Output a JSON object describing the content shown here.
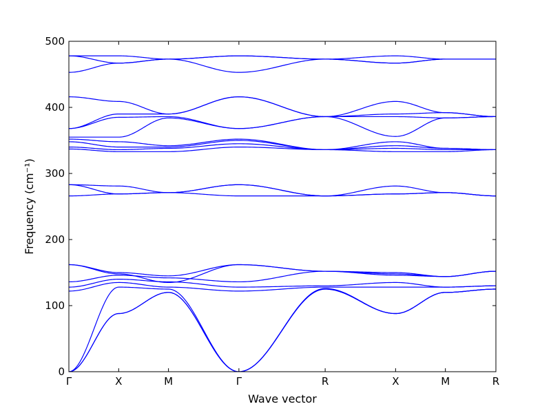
{
  "chart_data": {
    "type": "line",
    "xlabel": "Wave vector",
    "ylabel": "Frequency (cm⁻¹)",
    "ylim": [
      0,
      500
    ],
    "yticks": [
      0,
      100,
      200,
      300,
      400,
      500
    ],
    "kpoints": [
      {
        "label": "Γ",
        "x": 0.0
      },
      {
        "label": "X",
        "x": 0.5
      },
      {
        "label": "M",
        "x": 1.0
      },
      {
        "label": "Γ",
        "x": 1.707
      },
      {
        "label": "R",
        "x": 2.573
      },
      {
        "label": "X",
        "x": 3.28
      },
      {
        "label": "M",
        "x": 3.78
      },
      {
        "label": "R",
        "x": 4.287
      }
    ],
    "line_color": "#0000ff",
    "grid": false,
    "series": [
      {
        "x": [
          0,
          0.5,
          1,
          1.707,
          2.573,
          3.28,
          3.78,
          4.287
        ],
        "y": [
          0,
          88,
          120,
          0,
          125,
          88,
          120,
          125
        ]
      },
      {
        "x": [
          0,
          0.5,
          1,
          1.707,
          2.573,
          3.28,
          3.78,
          4.287
        ],
        "y": [
          0,
          88,
          120,
          0,
          125,
          88,
          120,
          125
        ]
      },
      {
        "x": [
          0,
          0.5,
          1,
          1.707,
          2.573,
          3.28,
          3.78,
          4.287
        ],
        "y": [
          0,
          128,
          125,
          0,
          126,
          88,
          120,
          125
        ]
      },
      {
        "x": [
          0,
          0.5,
          1,
          1.707,
          2.573,
          3.28,
          3.78,
          4.287
        ],
        "y": [
          122,
          135,
          128,
          122,
          128,
          128,
          128,
          130
        ]
      },
      {
        "x": [
          0,
          0.5,
          1,
          1.707,
          2.573,
          3.28,
          3.78,
          4.287
        ],
        "y": [
          128,
          140,
          136,
          128,
          130,
          135,
          128,
          130
        ]
      },
      {
        "x": [
          0,
          0.5,
          1,
          1.707,
          2.573,
          3.28,
          3.78,
          4.287
        ],
        "y": [
          136,
          146,
          142,
          136,
          152,
          146,
          144,
          152
        ]
      },
      {
        "x": [
          0,
          0.5,
          1,
          1.707,
          2.573,
          3.28,
          3.78,
          4.287
        ],
        "y": [
          162,
          148,
          135,
          162,
          152,
          148,
          144,
          152
        ]
      },
      {
        "x": [
          0,
          0.5,
          1,
          1.707,
          2.573,
          3.28,
          3.78,
          4.287
        ],
        "y": [
          162,
          150,
          145,
          162,
          152,
          150,
          144,
          152
        ]
      },
      {
        "x": [
          0,
          0.5,
          1,
          1.707,
          2.573,
          3.28,
          3.78,
          4.287
        ],
        "y": [
          266,
          269,
          271,
          266,
          266,
          269,
          271,
          266
        ]
      },
      {
        "x": [
          0,
          0.5,
          1,
          1.707,
          2.573,
          3.28,
          3.78,
          4.287
        ],
        "y": [
          283,
          269,
          271,
          283,
          266,
          269,
          271,
          266
        ]
      },
      {
        "x": [
          0,
          0.5,
          1,
          1.707,
          2.573,
          3.28,
          3.78,
          4.287
        ],
        "y": [
          283,
          281,
          271,
          283,
          266,
          281,
          271,
          266
        ]
      },
      {
        "x": [
          0,
          0.5,
          1,
          1.707,
          2.573,
          3.28,
          3.78,
          4.287
        ],
        "y": [
          337,
          333,
          333,
          340,
          336,
          333,
          333,
          336
        ]
      },
      {
        "x": [
          0,
          0.5,
          1,
          1.707,
          2.573,
          3.28,
          3.78,
          4.287
        ],
        "y": [
          340,
          336,
          338,
          345,
          336,
          338,
          336,
          336
        ]
      },
      {
        "x": [
          0,
          0.5,
          1,
          1.707,
          2.573,
          3.28,
          3.78,
          4.287
        ],
        "y": [
          348,
          340,
          340,
          350,
          336,
          342,
          338,
          336
        ]
      },
      {
        "x": [
          0,
          0.5,
          1,
          1.707,
          2.573,
          3.28,
          3.78,
          4.287
        ],
        "y": [
          352,
          348,
          342,
          352,
          336,
          348,
          338,
          336
        ]
      },
      {
        "x": [
          0,
          0.5,
          1,
          1.707,
          2.573,
          3.28,
          3.78,
          4.287
        ],
        "y": [
          355,
          355,
          384,
          368,
          386,
          356,
          384,
          386
        ]
      },
      {
        "x": [
          0,
          0.5,
          1,
          1.707,
          2.573,
          3.28,
          3.78,
          4.287
        ],
        "y": [
          368,
          385,
          386,
          368,
          386,
          386,
          384,
          386
        ]
      },
      {
        "x": [
          0,
          0.5,
          1,
          1.707,
          2.573,
          3.28,
          3.78,
          4.287
        ],
        "y": [
          368,
          390,
          390,
          416,
          386,
          390,
          392,
          386
        ]
      },
      {
        "x": [
          0,
          0.5,
          1,
          1.707,
          2.573,
          3.28,
          3.78,
          4.287
        ],
        "y": [
          416,
          409,
          390,
          416,
          386,
          409,
          392,
          386
        ]
      },
      {
        "x": [
          0,
          0.5,
          1,
          1.707,
          2.573,
          3.28,
          3.78,
          4.287
        ],
        "y": [
          453,
          467,
          473,
          453,
          473,
          467,
          473,
          473
        ]
      },
      {
        "x": [
          0,
          0.5,
          1,
          1.707,
          2.573,
          3.28,
          3.78,
          4.287
        ],
        "y": [
          478,
          467,
          473,
          478,
          473,
          467,
          473,
          473
        ]
      },
      {
        "x": [
          0,
          0.5,
          1,
          1.707,
          2.573,
          3.28,
          3.78,
          4.287
        ],
        "y": [
          478,
          478,
          473,
          478,
          473,
          478,
          473,
          473
        ]
      }
    ]
  }
}
